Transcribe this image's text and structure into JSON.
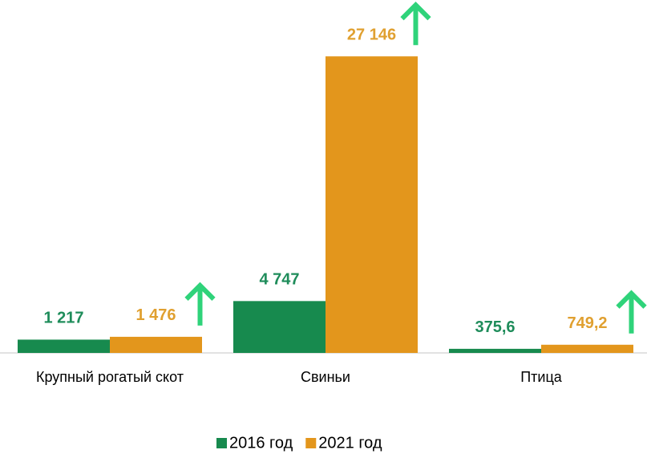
{
  "chart_data": {
    "type": "bar",
    "categories": [
      "Крупный рогатый скот",
      "Свиньи",
      "Птица"
    ],
    "series": [
      {
        "name": "2016 год",
        "color": "#178a4e",
        "values": [
          1217,
          4747,
          375.6
        ],
        "value_labels": [
          "1 217",
          "4 747",
          "375,6"
        ]
      },
      {
        "name": "2021 год",
        "color": "#e3961c",
        "values": [
          1476,
          27146,
          749.2
        ],
        "value_labels": [
          "1 476",
          "27 146",
          "749,2"
        ]
      }
    ],
    "ylim": [
      0,
      29000
    ],
    "legend": "bottom"
  }
}
